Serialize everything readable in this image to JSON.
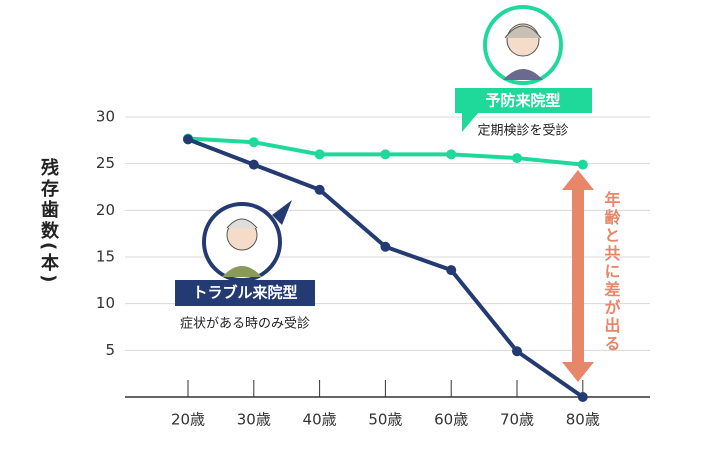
{
  "chart_data": {
    "type": "line",
    "y_label": "残存歯数(本)",
    "categories": [
      "20歳",
      "30歳",
      "40歳",
      "50歳",
      "60歳",
      "70歳",
      "80歳"
    ],
    "series": [
      {
        "name": "予防来院型",
        "color": "#1fd99a",
        "values": [
          27.7,
          27.3,
          26.0,
          26.0,
          26.0,
          25.6,
          24.9
        ]
      },
      {
        "name": "トラブル来院型",
        "color": "#243a73",
        "values": [
          27.6,
          24.9,
          22.2,
          16.1,
          13.6,
          4.9,
          0
        ]
      }
    ],
    "series_notes": [
      "定期検診を受診",
      "症状がある時のみ受診"
    ],
    "annotation": "年齢と共に差が出る",
    "ylim": [
      0,
      30
    ],
    "yticks": [
      5,
      10,
      15,
      20,
      25,
      30
    ],
    "grid": true
  }
}
